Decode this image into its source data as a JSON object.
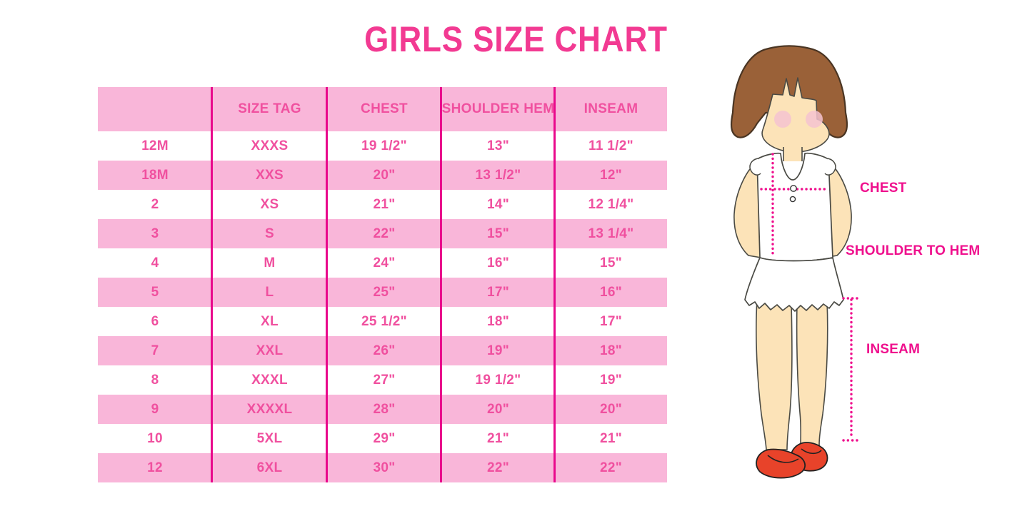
{
  "page": {
    "title": "GIRLS SIZE CHART",
    "background": "#ffffff"
  },
  "colors": {
    "title_pink": "#f23a92",
    "row_band_pink": "#f9b6d9",
    "column_divider_magenta": "#e9098c",
    "table_text_pink": "#f0509f",
    "label_magenta": "#ef108d",
    "hair_brown": "#9a6138",
    "skin_tan": "#fce3b8",
    "blush_pink": "#f5c3d0",
    "shoe_red": "#e8432a",
    "shirt_white": "#ffffff"
  },
  "chart_data": {
    "type": "table",
    "title": "GIRLS SIZE CHART",
    "columns": [
      "",
      "SIZE TAG",
      "CHEST",
      "SHOULDER HEM",
      "INSEAM"
    ],
    "rows": [
      [
        "12M",
        "XXXS",
        "19 1/2\"",
        "13\"",
        "11 1/2\""
      ],
      [
        "18M",
        "XXS",
        "20\"",
        "13 1/2\"",
        "12\""
      ],
      [
        "2",
        "XS",
        "21\"",
        "14\"",
        "12 1/4\""
      ],
      [
        "3",
        "S",
        "22\"",
        "15\"",
        "13 1/4\""
      ],
      [
        "4",
        "M",
        "24\"",
        "16\"",
        "15\""
      ],
      [
        "5",
        "L",
        "25\"",
        "17\"",
        "16\""
      ],
      [
        "6",
        "XL",
        "25 1/2\"",
        "18\"",
        "17\""
      ],
      [
        "7",
        "XXL",
        "26\"",
        "19\"",
        "18\""
      ],
      [
        "8",
        "XXXL",
        "27\"",
        "19 1/2\"",
        "19\""
      ],
      [
        "9",
        "XXXXL",
        "28\"",
        "20\"",
        "20\""
      ],
      [
        "10",
        "5XL",
        "29\"",
        "21\"",
        "21\""
      ],
      [
        "12",
        "6XL",
        "30\"",
        "22\"",
        "22\""
      ]
    ],
    "row_banding": "alternating white and pink, header pink",
    "legend_position": "none",
    "grid": "vertical magenta dividers only"
  },
  "diagram": {
    "description": "cartoon girl with brown bob hair, white ruffled top, red mary-jane shoes, pink dotted measurement guides",
    "labels": {
      "chest": "CHEST",
      "shoulder_to_hem": "SHOULDER TO HEM",
      "inseam": "INSEAM"
    }
  }
}
